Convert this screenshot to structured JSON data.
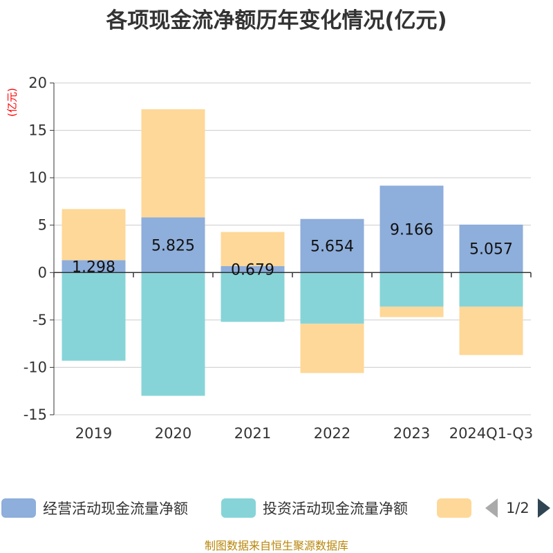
{
  "title": "各项现金流净额历年变化情况(亿元)",
  "unit_label": "(亿元)",
  "source": "制图数据来自恒生聚源数据库",
  "pager": "1/2",
  "colors": {
    "operating": "#8eaedb",
    "investing": "#86d4d8",
    "financing": "#fed898",
    "axis": "#333333",
    "grid": "#cccccc",
    "text": "#333333"
  },
  "legend": [
    {
      "name": "经营活动现金流量净额",
      "color": "#8eaedb"
    },
    {
      "name": "投资活动现金流量净额",
      "color": "#86d4d8"
    },
    {
      "name": "",
      "color": "#fed898"
    }
  ],
  "chart_data": {
    "type": "bar",
    "stacked": true,
    "categories": [
      "2019",
      "2020",
      "2021",
      "2022",
      "2023",
      "2024Q1-Q3"
    ],
    "ylim": [
      -15,
      20
    ],
    "yticks": [
      -15,
      -10,
      -5,
      0,
      5,
      10,
      15,
      20
    ],
    "grid": true,
    "legend_position": "bottom",
    "series": [
      {
        "name": "经营活动现金流量净额",
        "values": [
          1.298,
          5.825,
          0.679,
          5.654,
          9.166,
          5.057
        ],
        "labels": [
          "1.298",
          "5.825",
          "0.679",
          "5.654",
          "9.166",
          "5.057"
        ]
      },
      {
        "name": "投资活动现金流量净额",
        "values": [
          -9.3,
          -13.0,
          -5.2,
          -5.4,
          -3.6,
          -3.6
        ]
      },
      {
        "values": [
          5.4,
          11.4,
          3.6,
          -5.2,
          -1.1,
          -5.1
        ]
      }
    ]
  }
}
